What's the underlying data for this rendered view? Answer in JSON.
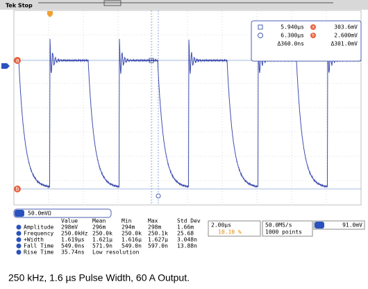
{
  "header": {
    "status": "Tek Stop"
  },
  "markers": [
    "a",
    "b"
  ],
  "cursors": {
    "t1": "5.940µs",
    "v1": "303.6mV",
    "t2": "6.300µs",
    "v2": "2.600mV",
    "dt": "Δ360.0ns",
    "dv": "Δ301.0mV"
  },
  "channel": {
    "scale": "50.0mVΩ"
  },
  "measurements": {
    "columns": [
      "Value",
      "Mean",
      "Min",
      "Max",
      "Std Dev"
    ],
    "rows": [
      [
        "Amplitude",
        "298mV",
        "296m",
        "294m",
        "298m",
        "1.66m"
      ],
      [
        "Frequency",
        "250.0kHz",
        "250.0k",
        "250.0k",
        "250.1k",
        "25.68"
      ],
      [
        "+Width",
        "1.619µs",
        "1.621µ",
        "1.616µ",
        "1.627µ",
        "3.048n"
      ],
      [
        "Fall Time",
        "549.0ns",
        "571.9n",
        "549.0n",
        "597.0n",
        "13.88n"
      ],
      [
        "Rise Time",
        "35.74ns",
        "Low resolution"
      ]
    ]
  },
  "timebase": {
    "scale": "2.00µs",
    "position": "10.10 %"
  },
  "acquisition": {
    "rate": "50.0MS/s",
    "points": "1000 points"
  },
  "trigger": {
    "level": "91.0mV"
  },
  "caption": "250 kHz, 1.6 µs Pulse Width, 60 A Output."
}
